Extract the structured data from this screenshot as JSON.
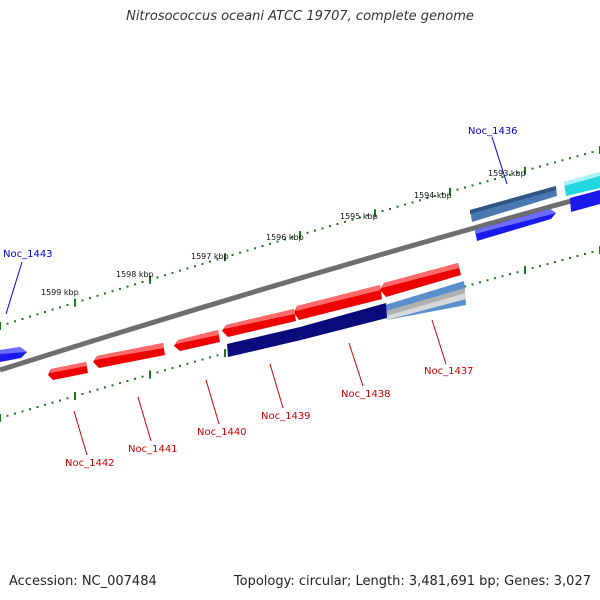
{
  "title": "Nitrosococcus oceani ATCC 19707, complete genome",
  "footer": {
    "accession": "Accession: NC_007484",
    "topology": "Topology: circular; Length: 3,481,691 bp; Genes: 3,027"
  },
  "colors": {
    "backbone": "#808080",
    "tick": "#1a7a1a",
    "forward_label": "#0000cc",
    "reverse_label": "#cc0000"
  },
  "scale_labels": [
    "1593 kbp",
    "1594 kbp",
    "1595 kbp",
    "1596 kbp",
    "1597 kbp",
    "1598 kbp",
    "1599 kbp"
  ],
  "genes": [
    {
      "label": "Noc_1436",
      "strand": "forward",
      "color": "#4a78b0"
    },
    {
      "label": "Noc_1437",
      "strand": "reverse",
      "color": "#5a8fcc"
    },
    {
      "label": "Noc_1438",
      "strand": "reverse",
      "color": "#ee0000"
    },
    {
      "label": "Noc_1439",
      "strand": "reverse",
      "color": "#ee0000"
    },
    {
      "label": "Noc_1440",
      "strand": "reverse",
      "color": "#ee0000"
    },
    {
      "label": "Noc_1441",
      "strand": "reverse",
      "color": "#ee0000"
    },
    {
      "label": "Noc_1442",
      "strand": "reverse",
      "color": "#ee0000"
    },
    {
      "label": "Noc_1443",
      "strand": "forward",
      "color": "#1a1aee"
    }
  ]
}
